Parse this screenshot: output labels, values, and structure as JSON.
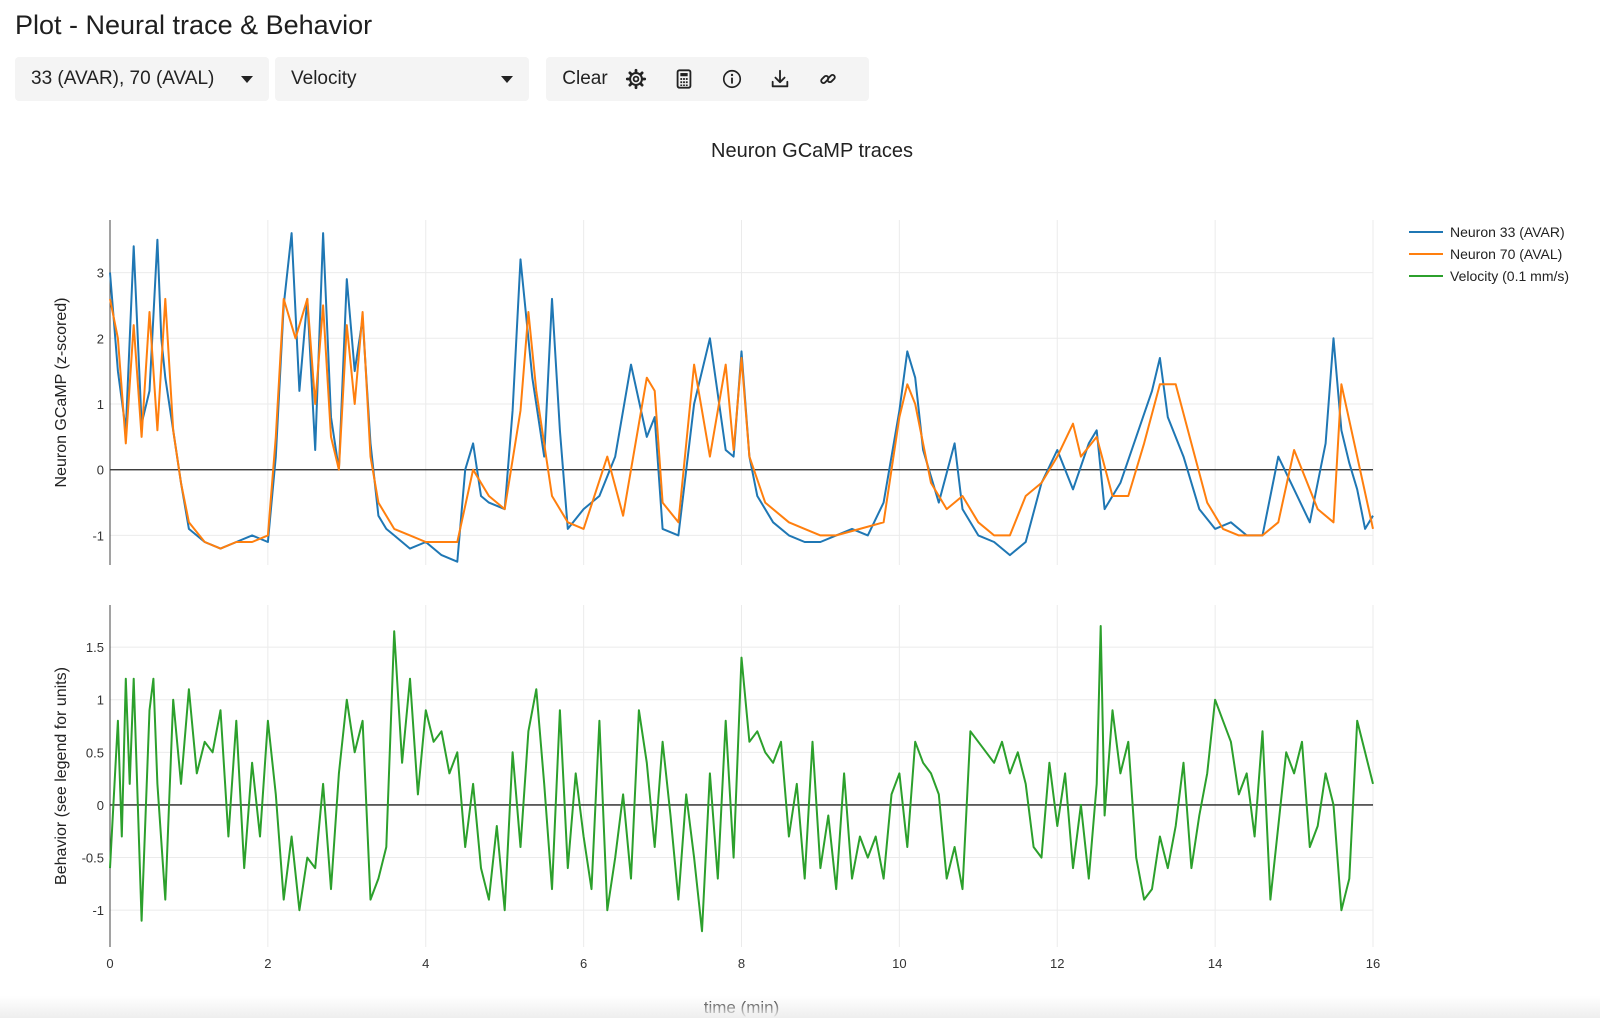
{
  "page": {
    "title": "Plot - Neural trace & Behavior"
  },
  "toolbar": {
    "neuron_select": {
      "value": "33 (AVAR), 70 (AVAL)"
    },
    "behavior_select": {
      "value": "Velocity"
    },
    "clear_label": "Clear",
    "icons": [
      "gear-icon",
      "calculator-icon",
      "info-icon",
      "download-icon",
      "link-icon"
    ]
  },
  "chart_data": {
    "type": "line",
    "title": "Neuron GCaMP traces",
    "xlabel": "time (min)",
    "xlim": [
      0,
      16
    ],
    "xticks": [
      0,
      2,
      4,
      6,
      8,
      10,
      12,
      14,
      16
    ],
    "legend_position": "top-right",
    "colors": {
      "neuron33": "#1f77b4",
      "neuron70": "#ff7f0e",
      "velocity": "#2ca02c"
    },
    "panels": [
      {
        "ylabel": "Neuron GCaMP (z-scored)",
        "ylim": [
          -1.45,
          3.8
        ],
        "yticks": [
          -1,
          0,
          1,
          2,
          3
        ],
        "series": [
          {
            "name": "Neuron 33 (AVAR)",
            "color": "#1f77b4",
            "x": [
              0,
              0.1,
              0.2,
              0.3,
              0.4,
              0.5,
              0.6,
              0.65,
              0.7,
              0.8,
              0.9,
              1.0,
              1.2,
              1.4,
              1.6,
              1.8,
              2.0,
              2.1,
              2.2,
              2.3,
              2.4,
              2.5,
              2.6,
              2.7,
              2.8,
              2.9,
              3.0,
              3.1,
              3.2,
              3.3,
              3.4,
              3.5,
              3.6,
              3.8,
              4.0,
              4.2,
              4.4,
              4.5,
              4.6,
              4.7,
              4.8,
              5.0,
              5.1,
              5.2,
              5.35,
              5.5,
              5.6,
              5.7,
              5.8,
              6.0,
              6.2,
              6.4,
              6.6,
              6.8,
              6.9,
              7.0,
              7.2,
              7.4,
              7.6,
              7.8,
              7.9,
              8.0,
              8.1,
              8.2,
              8.4,
              8.6,
              8.8,
              9.0,
              9.2,
              9.4,
              9.6,
              9.8,
              10.0,
              10.1,
              10.2,
              10.3,
              10.5,
              10.7,
              10.8,
              11.0,
              11.2,
              11.4,
              11.6,
              11.8,
              12.0,
              12.2,
              12.4,
              12.5,
              12.6,
              12.8,
              13.0,
              13.2,
              13.3,
              13.4,
              13.6,
              13.8,
              14.0,
              14.2,
              14.4,
              14.6,
              14.8,
              15.0,
              15.2,
              15.4,
              15.5,
              15.6,
              15.7,
              15.8,
              15.9,
              16.0
            ],
            "y": [
              3.0,
              1.5,
              0.6,
              3.4,
              0.7,
              1.2,
              3.5,
              2.0,
              1.4,
              0.6,
              -0.2,
              -0.9,
              -1.1,
              -1.2,
              -1.1,
              -1.0,
              -1.1,
              0.2,
              2.5,
              3.6,
              1.2,
              2.6,
              0.3,
              3.6,
              0.8,
              0.0,
              2.9,
              1.5,
              2.3,
              0.4,
              -0.7,
              -0.9,
              -1.0,
              -1.2,
              -1.1,
              -1.3,
              -1.4,
              0.0,
              0.4,
              -0.4,
              -0.5,
              -0.6,
              0.9,
              3.2,
              1.4,
              0.2,
              2.6,
              0.6,
              -0.9,
              -0.6,
              -0.4,
              0.2,
              1.6,
              0.5,
              0.8,
              -0.9,
              -1.0,
              1.0,
              2.0,
              0.3,
              0.2,
              1.8,
              0.2,
              -0.4,
              -0.8,
              -1.0,
              -1.1,
              -1.1,
              -1.0,
              -0.9,
              -1.0,
              -0.5,
              0.9,
              1.8,
              1.4,
              0.3,
              -0.5,
              0.4,
              -0.6,
              -1.0,
              -1.1,
              -1.3,
              -1.1,
              -0.2,
              0.3,
              -0.3,
              0.4,
              0.6,
              -0.6,
              -0.2,
              0.5,
              1.2,
              1.7,
              0.8,
              0.2,
              -0.6,
              -0.9,
              -0.8,
              -1.0,
              -1.0,
              0.2,
              -0.3,
              -0.8,
              0.4,
              2.0,
              0.6,
              0.1,
              -0.3,
              -0.9,
              -0.7
            ]
          },
          {
            "name": "Neuron 70 (AVAL)",
            "color": "#ff7f0e",
            "x": [
              0,
              0.1,
              0.2,
              0.3,
              0.4,
              0.5,
              0.6,
              0.7,
              0.8,
              0.9,
              1.0,
              1.2,
              1.4,
              1.6,
              1.8,
              2.0,
              2.1,
              2.2,
              2.35,
              2.5,
              2.6,
              2.7,
              2.8,
              2.9,
              3.0,
              3.1,
              3.2,
              3.3,
              3.4,
              3.6,
              3.8,
              4.0,
              4.2,
              4.4,
              4.6,
              4.8,
              5.0,
              5.2,
              5.3,
              5.4,
              5.6,
              5.8,
              6.0,
              6.3,
              6.5,
              6.8,
              6.9,
              7.0,
              7.2,
              7.4,
              7.6,
              7.8,
              7.9,
              8.0,
              8.1,
              8.3,
              8.6,
              8.8,
              9.0,
              9.2,
              9.5,
              9.8,
              10.0,
              10.1,
              10.2,
              10.4,
              10.6,
              10.8,
              11.0,
              11.2,
              11.4,
              11.6,
              11.8,
              12.0,
              12.2,
              12.3,
              12.5,
              12.7,
              12.9,
              13.1,
              13.3,
              13.5,
              13.7,
              13.9,
              14.1,
              14.3,
              14.6,
              14.8,
              15.0,
              15.1,
              15.3,
              15.5,
              15.6,
              15.8,
              16.0
            ],
            "y": [
              2.6,
              2.0,
              0.4,
              2.2,
              0.5,
              2.4,
              0.6,
              2.6,
              0.6,
              -0.2,
              -0.8,
              -1.1,
              -1.2,
              -1.1,
              -1.1,
              -1.0,
              0.5,
              2.6,
              2.0,
              2.6,
              1.0,
              2.5,
              0.5,
              0.0,
              2.2,
              1.0,
              2.4,
              0.2,
              -0.5,
              -0.9,
              -1.0,
              -1.1,
              -1.1,
              -1.1,
              0.0,
              -0.4,
              -0.6,
              0.9,
              2.4,
              1.2,
              -0.4,
              -0.8,
              -0.9,
              0.2,
              -0.7,
              1.4,
              1.2,
              -0.5,
              -0.8,
              1.6,
              0.2,
              1.6,
              0.3,
              1.7,
              0.2,
              -0.5,
              -0.8,
              -0.9,
              -1.0,
              -1.0,
              -0.9,
              -0.8,
              0.8,
              1.3,
              1.0,
              -0.2,
              -0.6,
              -0.4,
              -0.8,
              -1.0,
              -1.0,
              -0.4,
              -0.2,
              0.2,
              0.7,
              0.2,
              0.5,
              -0.4,
              -0.4,
              0.4,
              1.3,
              1.3,
              0.4,
              -0.5,
              -0.9,
              -1.0,
              -1.0,
              -0.8,
              0.3,
              0.0,
              -0.6,
              -0.8,
              1.3,
              0.2,
              -0.9
            ]
          }
        ]
      },
      {
        "ylabel": "Behavior (see legend for units)",
        "ylim": [
          -1.35,
          1.9
        ],
        "yticks": [
          -1,
          -0.5,
          0,
          0.5,
          1,
          1.5
        ],
        "series": [
          {
            "name": "Velocity (0.1 mm/s)",
            "color": "#2ca02c",
            "x": [
              0,
              0.1,
              0.15,
              0.2,
              0.25,
              0.3,
              0.4,
              0.5,
              0.55,
              0.6,
              0.7,
              0.8,
              0.9,
              1.0,
              1.1,
              1.2,
              1.3,
              1.4,
              1.5,
              1.6,
              1.7,
              1.8,
              1.9,
              2.0,
              2.1,
              2.2,
              2.3,
              2.4,
              2.5,
              2.6,
              2.7,
              2.8,
              2.9,
              3.0,
              3.1,
              3.2,
              3.3,
              3.4,
              3.5,
              3.6,
              3.7,
              3.8,
              3.9,
              4.0,
              4.1,
              4.2,
              4.3,
              4.4,
              4.5,
              4.6,
              4.7,
              4.8,
              4.9,
              5.0,
              5.1,
              5.2,
              5.3,
              5.4,
              5.5,
              5.6,
              5.7,
              5.8,
              5.9,
              6.0,
              6.1,
              6.2,
              6.3,
              6.4,
              6.5,
              6.6,
              6.7,
              6.8,
              6.9,
              7.0,
              7.1,
              7.2,
              7.3,
              7.4,
              7.5,
              7.6,
              7.7,
              7.8,
              7.9,
              8.0,
              8.1,
              8.2,
              8.3,
              8.4,
              8.5,
              8.6,
              8.7,
              8.8,
              8.9,
              9.0,
              9.1,
              9.2,
              9.3,
              9.4,
              9.5,
              9.6,
              9.7,
              9.8,
              9.9,
              10.0,
              10.1,
              10.2,
              10.3,
              10.4,
              10.5,
              10.6,
              10.7,
              10.8,
              10.9,
              11.0,
              11.1,
              11.2,
              11.3,
              11.4,
              11.5,
              11.6,
              11.7,
              11.8,
              11.9,
              12.0,
              12.1,
              12.2,
              12.3,
              12.4,
              12.5,
              12.55,
              12.6,
              12.7,
              12.8,
              12.9,
              13.0,
              13.1,
              13.2,
              13.3,
              13.4,
              13.5,
              13.6,
              13.7,
              13.8,
              13.9,
              14.0,
              14.1,
              14.2,
              14.3,
              14.4,
              14.5,
              14.6,
              14.7,
              14.8,
              14.9,
              15.0,
              15.1,
              15.2,
              15.3,
              15.4,
              15.5,
              15.6,
              15.7,
              15.8,
              15.9,
              16.0
            ],
            "y": [
              -0.6,
              0.8,
              -0.3,
              1.2,
              0.2,
              1.2,
              -1.1,
              0.9,
              1.2,
              0.2,
              -0.9,
              1.0,
              0.2,
              1.1,
              0.3,
              0.6,
              0.5,
              0.9,
              -0.3,
              0.8,
              -0.6,
              0.4,
              -0.3,
              0.8,
              0.1,
              -0.9,
              -0.3,
              -1.0,
              -0.5,
              -0.6,
              0.2,
              -0.8,
              0.3,
              1.0,
              0.5,
              0.8,
              -0.9,
              -0.7,
              -0.4,
              1.65,
              0.4,
              1.2,
              0.1,
              0.9,
              0.6,
              0.7,
              0.3,
              0.5,
              -0.4,
              0.2,
              -0.6,
              -0.9,
              -0.2,
              -1.0,
              0.5,
              -0.4,
              0.7,
              1.1,
              0.2,
              -0.8,
              0.9,
              -0.6,
              0.3,
              -0.3,
              -0.8,
              0.8,
              -1.0,
              -0.5,
              0.1,
              -0.7,
              0.9,
              0.4,
              -0.4,
              0.6,
              -0.1,
              -0.9,
              0.1,
              -0.5,
              -1.2,
              0.3,
              -0.7,
              0.8,
              -0.5,
              1.4,
              0.6,
              0.7,
              0.5,
              0.4,
              0.6,
              -0.3,
              0.2,
              -0.7,
              0.6,
              -0.6,
              -0.1,
              -0.8,
              0.3,
              -0.7,
              -0.3,
              -0.5,
              -0.3,
              -0.7,
              0.1,
              0.3,
              -0.4,
              0.6,
              0.4,
              0.3,
              0.1,
              -0.7,
              -0.4,
              -0.8,
              0.7,
              0.6,
              0.5,
              0.4,
              0.6,
              0.3,
              0.5,
              0.2,
              -0.4,
              -0.5,
              0.4,
              -0.2,
              0.3,
              -0.6,
              0.0,
              -0.7,
              0.2,
              1.7,
              -0.1,
              0.9,
              0.3,
              0.6,
              -0.5,
              -0.9,
              -0.8,
              -0.3,
              -0.6,
              -0.2,
              0.4,
              -0.6,
              -0.1,
              0.3,
              1.0,
              0.8,
              0.6,
              0.1,
              0.3,
              -0.3,
              0.7,
              -0.9,
              -0.2,
              0.5,
              0.3,
              0.6,
              -0.4,
              -0.2,
              0.3,
              0.0,
              -1.0,
              -0.7,
              0.8,
              0.5,
              0.2
            ]
          }
        ]
      }
    ]
  }
}
